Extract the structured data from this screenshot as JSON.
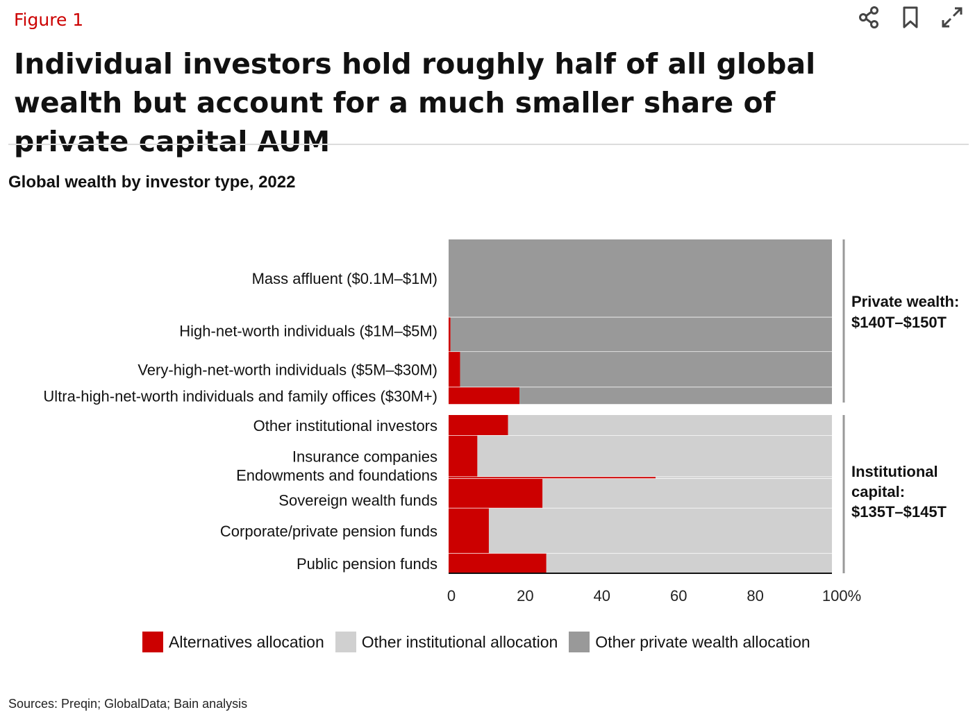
{
  "header": {
    "figure_label": "Figure 1",
    "title": "Individual investors hold roughly half of all global wealth but account for a much smaller share of private capital AUM",
    "subtitle": "Global wealth by investor type, 2022"
  },
  "toolbar": {
    "icons": [
      "share-icon",
      "bookmark-icon",
      "expand-icon"
    ]
  },
  "colors": {
    "alternatives": "#cc0000",
    "other_institutional": "#d0d0d0",
    "other_private": "#999999"
  },
  "chart_data": {
    "type": "bar",
    "orientation": "horizontal",
    "stacked": true,
    "title": "Global wealth by investor type, 2022",
    "xlim": [
      0,
      100
    ],
    "x_ticks": [
      "0",
      "20",
      "40",
      "60",
      "80",
      "100%"
    ],
    "categories": [
      "Mass affluent ($0.1M–$1M)",
      "High-net-worth individuals ($1M–$5M)",
      "Very-high-net-worth individuals ($5M–$30M)",
      "Ultra-high-net-worth individuals and family offices ($30M+)",
      "Other institutional investors",
      "Insurance companies",
      "Endowments and foundations",
      "Sovereign wealth funds",
      "Corporate/private pension funds",
      "Public pension funds"
    ],
    "share_of_total_wealth_pct": [
      38.5,
      17.0,
      17.5,
      8.5,
      10.5,
      21.0,
      1.0,
      15.0,
      23.0,
      10.0
    ],
    "group": [
      "private",
      "private",
      "private",
      "private",
      "institutional",
      "institutional",
      "institutional",
      "institutional",
      "institutional",
      "institutional"
    ],
    "series": [
      {
        "name": "Alternatives allocation",
        "values": [
          0,
          0.5,
          3,
          18.5,
          15.5,
          7.5,
          54,
          24.5,
          10.5,
          25.5
        ]
      },
      {
        "name": "Other institutional allocation",
        "values": [
          0,
          0,
          0,
          0,
          84.5,
          92.5,
          46,
          75.5,
          89.5,
          74.5
        ]
      },
      {
        "name": "Other private wealth allocation",
        "values": [
          100,
          99.5,
          97,
          81.5,
          0,
          0,
          0,
          0,
          0,
          0
        ]
      }
    ],
    "brackets": [
      {
        "lines": [
          "Private wealth:",
          "$140T–$150T"
        ]
      },
      {
        "lines": [
          "Institutional",
          "capital:",
          "$135T–$145T"
        ]
      }
    ],
    "legend": [
      "Alternatives allocation",
      "Other institutional allocation",
      "Other private wealth allocation"
    ],
    "legend_position": "bottom"
  },
  "footer": {
    "sources": "Sources: Preqin; GlobalData; Bain analysis"
  }
}
